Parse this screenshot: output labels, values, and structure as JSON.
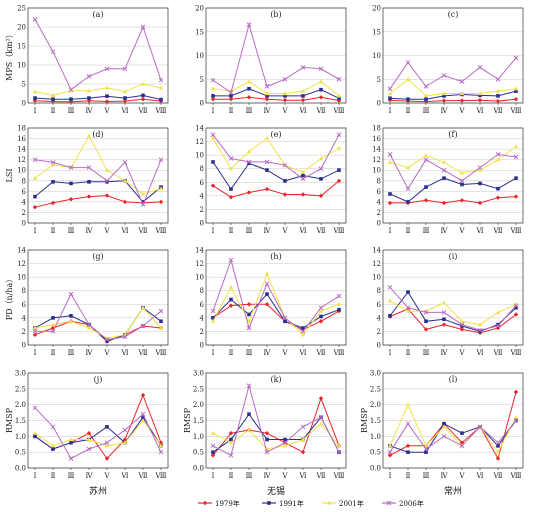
{
  "colors": {
    "1979": "#e8262a",
    "1991": "#2b2f8f",
    "2001": "#f0e24a",
    "2006": "#b86cc4",
    "grid": "#c8c8c8"
  },
  "legend": [
    {
      "key": "1979",
      "label": "1979年"
    },
    {
      "key": "1991",
      "label": "1991年"
    },
    {
      "key": "2001",
      "label": "2001年"
    },
    {
      "key": "2006",
      "label": "2006年"
    }
  ],
  "cities": [
    "苏州",
    "无锡",
    "常州"
  ],
  "chart_data": [
    {
      "type": "line",
      "panel": "(a)",
      "ylabel": "MPS（km²）",
      "ylim": [
        0,
        25
      ],
      "yticks": [
        "0",
        "5",
        "10",
        "15",
        "20",
        "25"
      ],
      "categories": [
        "Ⅰ",
        "Ⅱ",
        "Ⅲ",
        "Ⅳ",
        "Ⅴ",
        "Ⅵ",
        "Ⅶ",
        "Ⅷ"
      ],
      "series": [
        {
          "name": "1979年",
          "values": [
            0.6,
            0.4,
            0.3,
            0.6,
            0.4,
            0.5,
            1.0,
            0.5
          ]
        },
        {
          "name": "1991年",
          "values": [
            1.3,
            1.0,
            1.0,
            1.3,
            1.8,
            1.3,
            2.0,
            0.9
          ]
        },
        {
          "name": "2001年",
          "values": [
            3.0,
            2.0,
            3.2,
            3.2,
            4.0,
            3.0,
            5.0,
            4.0
          ]
        },
        {
          "name": "2006年",
          "values": [
            22,
            13.5,
            3.5,
            7,
            9,
            9,
            20,
            6
          ]
        }
      ]
    },
    {
      "type": "line",
      "panel": "(b)",
      "ylabel": "",
      "ylim": [
        0,
        20
      ],
      "yticks": [
        "0",
        "5",
        "10",
        "15",
        "20"
      ],
      "categories": [
        "Ⅰ",
        "Ⅱ",
        "Ⅲ",
        "Ⅳ",
        "Ⅴ",
        "Ⅵ",
        "Ⅶ",
        "Ⅷ"
      ],
      "series": [
        {
          "name": "1979年",
          "values": [
            0.8,
            0.8,
            1.2,
            0.8,
            0.6,
            0.6,
            1.2,
            0.5
          ]
        },
        {
          "name": "1991年",
          "values": [
            1.5,
            1.5,
            3.0,
            1.5,
            1.5,
            1.5,
            2.8,
            1.0
          ]
        },
        {
          "name": "2001年",
          "values": [
            3.0,
            2.5,
            4.5,
            2.0,
            2.0,
            2.5,
            4.5,
            1.5
          ]
        },
        {
          "name": "2006年",
          "values": [
            4.8,
            2.2,
            16.5,
            3.5,
            5,
            7.5,
            7.2,
            5
          ]
        }
      ]
    },
    {
      "type": "line",
      "panel": "(c)",
      "ylabel": "",
      "ylim": [
        0,
        20
      ],
      "yticks": [
        "0",
        "5",
        "10",
        "15",
        "20"
      ],
      "categories": [
        "Ⅰ",
        "Ⅱ",
        "Ⅲ",
        "Ⅳ",
        "Ⅴ",
        "Ⅵ",
        "Ⅶ",
        "Ⅷ"
      ],
      "series": [
        {
          "name": "1979年",
          "values": [
            0.6,
            0.4,
            0.3,
            0.5,
            0.5,
            0.6,
            0.4,
            0.8
          ]
        },
        {
          "name": "1991年",
          "values": [
            1.0,
            0.8,
            0.8,
            1.5,
            1.8,
            1.6,
            1.5,
            2.5
          ]
        },
        {
          "name": "2001年",
          "values": [
            2.0,
            5.0,
            1.5,
            2.0,
            2.0,
            2.0,
            2.5,
            3.0
          ]
        },
        {
          "name": "2006年",
          "values": [
            3.0,
            8.5,
            3.5,
            5.8,
            4.5,
            7.5,
            5.0,
            9.5
          ]
        }
      ]
    },
    {
      "type": "line",
      "panel": "(d)",
      "ylabel": "LSI",
      "ylim": [
        0,
        18
      ],
      "yticks": [
        "0",
        "2",
        "4",
        "6",
        "8",
        "10",
        "12",
        "14",
        "16",
        "18"
      ],
      "categories": [
        "Ⅰ",
        "Ⅱ",
        "Ⅲ",
        "Ⅳ",
        "Ⅴ",
        "Ⅵ",
        "Ⅶ",
        "Ⅷ"
      ],
      "series": [
        {
          "name": "1979年",
          "values": [
            3.0,
            3.8,
            4.5,
            5.0,
            5.2,
            4.0,
            3.8,
            4.0
          ]
        },
        {
          "name": "1991年",
          "values": [
            5.0,
            7.8,
            7.5,
            7.8,
            7.8,
            8.0,
            4.0,
            6.8
          ]
        },
        {
          "name": "2001年",
          "values": [
            8.5,
            11.0,
            10.5,
            16.5,
            10.0,
            8.0,
            5.5,
            6.5
          ]
        },
        {
          "name": "2006年",
          "values": [
            12.0,
            11.5,
            10.5,
            10.5,
            8.0,
            11.5,
            3.5,
            12.0
          ]
        }
      ]
    },
    {
      "type": "line",
      "panel": "(e)",
      "ylabel": "",
      "ylim": [
        0,
        14
      ],
      "yticks": [
        "0",
        "2",
        "4",
        "6",
        "8",
        "10",
        "12",
        "14"
      ],
      "categories": [
        "Ⅰ",
        "Ⅱ",
        "Ⅲ",
        "Ⅳ",
        "Ⅴ",
        "Ⅵ",
        "Ⅶ",
        "Ⅷ"
      ],
      "series": [
        {
          "name": "1979年",
          "values": [
            5.5,
            3.8,
            4.5,
            5.0,
            4.2,
            4.2,
            4.0,
            6.2
          ]
        },
        {
          "name": "1991年",
          "values": [
            9.0,
            5.0,
            8.8,
            7.8,
            6.2,
            7.0,
            6.5,
            7.8
          ]
        },
        {
          "name": "2001年",
          "values": [
            12.5,
            8.0,
            10.5,
            12.5,
            8.5,
            7.5,
            9.5,
            11.0
          ]
        },
        {
          "name": "2006年",
          "values": [
            13.0,
            9.5,
            9.0,
            9.0,
            8.5,
            6.5,
            8.0,
            13.0
          ]
        }
      ]
    },
    {
      "type": "line",
      "panel": "(f)",
      "ylabel": "",
      "ylim": [
        0,
        18
      ],
      "yticks": [
        "0",
        "2",
        "4",
        "6",
        "8",
        "10",
        "12",
        "14",
        "16",
        "18"
      ],
      "categories": [
        "Ⅰ",
        "Ⅱ",
        "Ⅲ",
        "Ⅳ",
        "Ⅴ",
        "Ⅵ",
        "Ⅶ",
        "Ⅷ"
      ],
      "series": [
        {
          "name": "1979年",
          "values": [
            3.8,
            3.8,
            4.3,
            3.8,
            4.3,
            3.8,
            4.8,
            5.0
          ]
        },
        {
          "name": "1991年",
          "values": [
            5.5,
            4.0,
            6.8,
            8.5,
            7.3,
            7.5,
            6.5,
            8.5
          ]
        },
        {
          "name": "2001年",
          "values": [
            11.5,
            10.5,
            12.8,
            11.5,
            9.5,
            10.0,
            12.0,
            14.5
          ]
        },
        {
          "name": "2006年",
          "values": [
            13.0,
            6.5,
            12.0,
            10.0,
            8.0,
            10.5,
            13.0,
            12.5
          ]
        }
      ]
    },
    {
      "type": "line",
      "panel": "(g)",
      "ylabel": "PD（n/ha）",
      "ylim": [
        0,
        14
      ],
      "yticks": [
        "0",
        "2",
        "4",
        "6",
        "8",
        "10",
        "12",
        "14"
      ],
      "categories": [
        "Ⅰ",
        "Ⅱ",
        "Ⅲ",
        "Ⅳ",
        "Ⅴ",
        "Ⅵ",
        "Ⅶ",
        "Ⅷ"
      ],
      "series": [
        {
          "name": "1979年",
          "values": [
            1.5,
            2.5,
            3.5,
            3.0,
            0.5,
            1.5,
            2.8,
            2.5
          ]
        },
        {
          "name": "1991年",
          "values": [
            2.5,
            4.0,
            4.3,
            3.0,
            0.6,
            1.5,
            5.5,
            3.5
          ]
        },
        {
          "name": "2001年",
          "values": [
            2.5,
            3.0,
            3.5,
            2.5,
            1.0,
            1.5,
            5.5,
            2.5
          ]
        },
        {
          "name": "2006年",
          "values": [
            2.0,
            2.0,
            7.5,
            3.0,
            0.8,
            1.2,
            2.8,
            5.0
          ]
        }
      ]
    },
    {
      "type": "line",
      "panel": "(h)",
      "ylabel": "",
      "ylim": [
        0,
        14
      ],
      "yticks": [
        "0",
        "2",
        "4",
        "6",
        "8",
        "10",
        "12",
        "14"
      ],
      "categories": [
        "Ⅰ",
        "Ⅱ",
        "Ⅲ",
        "Ⅳ",
        "Ⅴ",
        "Ⅵ",
        "Ⅶ",
        "Ⅷ"
      ],
      "series": [
        {
          "name": "1979年",
          "values": [
            4.0,
            5.8,
            6.0,
            6.0,
            3.5,
            2.3,
            3.5,
            5.0
          ]
        },
        {
          "name": "1991年",
          "values": [
            4.0,
            6.7,
            4.5,
            7.5,
            3.5,
            2.5,
            4.2,
            5.2
          ]
        },
        {
          "name": "2001年",
          "values": [
            3.5,
            8.5,
            3.5,
            10.5,
            4.0,
            1.5,
            5.0,
            6.0
          ]
        },
        {
          "name": "2006年",
          "values": [
            5.0,
            12.5,
            2.5,
            9.0,
            4.0,
            2.0,
            5.5,
            7.2
          ]
        }
      ]
    },
    {
      "type": "line",
      "panel": "(i)",
      "ylabel": "",
      "ylim": [
        0,
        14
      ],
      "yticks": [
        "0",
        "2",
        "4",
        "6",
        "8",
        "10",
        "12",
        "14"
      ],
      "categories": [
        "Ⅰ",
        "Ⅱ",
        "Ⅲ",
        "Ⅳ",
        "Ⅴ",
        "Ⅵ",
        "Ⅶ",
        "Ⅷ"
      ],
      "series": [
        {
          "name": "1979年",
          "values": [
            4.2,
            5.3,
            2.3,
            3.0,
            2.3,
            1.8,
            2.5,
            4.5
          ]
        },
        {
          "name": "1991年",
          "values": [
            4.3,
            7.8,
            3.5,
            3.8,
            2.8,
            2.0,
            3.0,
            5.5
          ]
        },
        {
          "name": "2001年",
          "values": [
            6.5,
            5.0,
            5.0,
            6.2,
            3.5,
            3.0,
            4.8,
            6.0
          ]
        },
        {
          "name": "2006年",
          "values": [
            8.5,
            5.5,
            4.8,
            4.8,
            3.0,
            2.2,
            2.8,
            5.8
          ]
        }
      ]
    },
    {
      "type": "line",
      "panel": "(j)",
      "ylabel": "RMSP",
      "ylim": [
        0,
        3.0
      ],
      "yticks": [
        "0.0",
        "0.5",
        "1.0",
        "1.5",
        "2.0",
        "2.5",
        "3.0"
      ],
      "categories": [
        "Ⅰ",
        "Ⅱ",
        "Ⅲ",
        "Ⅳ",
        "Ⅴ",
        "Ⅵ",
        "Ⅶ",
        "Ⅷ"
      ],
      "series": [
        {
          "name": "1979年",
          "values": [
            1.0,
            0.6,
            0.8,
            1.1,
            0.3,
            0.9,
            2.3,
            0.8
          ]
        },
        {
          "name": "1991年",
          "values": [
            1.0,
            0.6,
            0.8,
            0.9,
            1.3,
            0.8,
            1.6,
            0.7
          ]
        },
        {
          "name": "2001年",
          "values": [
            1.1,
            0.7,
            0.9,
            0.9,
            0.7,
            0.8,
            1.5,
            0.7
          ]
        },
        {
          "name": "2006年",
          "values": [
            1.9,
            1.3,
            0.3,
            0.6,
            0.8,
            1.2,
            1.7,
            0.5
          ]
        }
      ]
    },
    {
      "type": "line",
      "panel": "(k)",
      "ylabel": "RMSP",
      "ylim": [
        0,
        3.0
      ],
      "yticks": [
        "0.0",
        "0.5",
        "1.0",
        "1.5",
        "2.0",
        "2.5",
        "3.0"
      ],
      "categories": [
        "Ⅰ",
        "Ⅱ",
        "Ⅲ",
        "Ⅳ",
        "Ⅴ",
        "Ⅵ",
        "Ⅶ",
        "Ⅷ"
      ],
      "series": [
        {
          "name": "1979年",
          "values": [
            0.4,
            1.1,
            1.2,
            1.1,
            0.8,
            0.5,
            2.2,
            0.7
          ]
        },
        {
          "name": "1991年",
          "values": [
            0.5,
            0.9,
            1.7,
            0.9,
            0.9,
            0.9,
            1.6,
            0.5
          ]
        },
        {
          "name": "2001年",
          "values": [
            1.1,
            0.8,
            1.2,
            0.6,
            0.7,
            0.9,
            1.4,
            0.7
          ]
        },
        {
          "name": "2006年",
          "values": [
            0.7,
            0.4,
            2.6,
            0.5,
            0.8,
            1.3,
            1.6,
            0.5
          ]
        }
      ]
    },
    {
      "type": "line",
      "panel": "(l)",
      "ylabel": "RMSP",
      "ylim": [
        0,
        3.0
      ],
      "yticks": [
        "0.0",
        "0.5",
        "1.0",
        "1.5",
        "2.0",
        "2.5",
        "3.0"
      ],
      "categories": [
        "Ⅰ",
        "Ⅱ",
        "Ⅲ",
        "Ⅳ",
        "Ⅴ",
        "Ⅵ",
        "Ⅶ",
        "Ⅷ"
      ],
      "series": [
        {
          "name": "1979年",
          "values": [
            0.4,
            0.7,
            0.7,
            1.4,
            0.8,
            1.3,
            0.3,
            2.4
          ]
        },
        {
          "name": "1991年",
          "values": [
            0.7,
            0.5,
            0.5,
            1.4,
            1.1,
            1.3,
            0.7,
            1.5
          ]
        },
        {
          "name": "2001年",
          "values": [
            0.7,
            2.0,
            0.7,
            1.3,
            0.7,
            1.3,
            0.5,
            1.6
          ]
        },
        {
          "name": "2006年",
          "values": [
            0.5,
            1.4,
            0.6,
            1.0,
            0.7,
            1.3,
            0.8,
            1.5
          ]
        }
      ]
    }
  ]
}
